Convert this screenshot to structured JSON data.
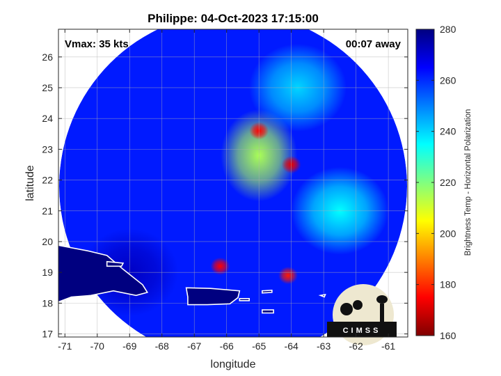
{
  "chart_data": {
    "type": "heatmap",
    "title": "Philippe: 04-Oct-2023 17:15:00",
    "xlabel": "longitude",
    "ylabel": "latitude",
    "xlim": [
      -71.2,
      -60.4
    ],
    "ylim": [
      16.9,
      26.9
    ],
    "x_ticks": [
      -71,
      -70,
      -69,
      -68,
      -67,
      -66,
      -65,
      -64,
      -63,
      -62,
      -61
    ],
    "y_ticks": [
      17,
      18,
      19,
      20,
      21,
      22,
      23,
      24,
      25,
      26
    ],
    "grid": true,
    "annotations": {
      "vmax": "Vmax: 35 kts",
      "away": "00:07 away"
    },
    "colorbar": {
      "label": "Brightness Temp - Horizontal Polarization",
      "range": [
        160,
        280
      ],
      "ticks": [
        160,
        180,
        200,
        220,
        240,
        260,
        280
      ],
      "colormap": [
        "#800000",
        "#ff0000",
        "#ff8000",
        "#ffff00",
        "#80ff80",
        "#00ffff",
        "#0080ff",
        "#0000ff",
        "#000080"
      ]
    },
    "swath": {
      "center_lon": -65.8,
      "center_lat": 21.8,
      "background_value": 262
    },
    "features": [
      {
        "name": "central convective band",
        "lon": -65.0,
        "lat": 22.8,
        "value": 215
      },
      {
        "name": "cold core near 22.5N",
        "lon": -64.0,
        "lat": 22.5,
        "value": 172
      },
      {
        "name": "cold core near 23.5N",
        "lon": -65.0,
        "lat": 23.6,
        "value": 175
      },
      {
        "name": "convection near 19N",
        "lon": -66.2,
        "lat": 19.2,
        "value": 175
      },
      {
        "name": "convection near 18.9N",
        "lon": -64.1,
        "lat": 18.9,
        "value": 178
      },
      {
        "name": "warm cloud area NE",
        "lon": -63.8,
        "lat": 25.0,
        "value": 240
      },
      {
        "name": "warm cloud area E",
        "lon": -62.5,
        "lat": 21.0,
        "value": 235
      },
      {
        "name": "ocean south of PR",
        "lon": -69.0,
        "lat": 19.0,
        "value": 272
      }
    ],
    "logo": "CIMSS"
  }
}
